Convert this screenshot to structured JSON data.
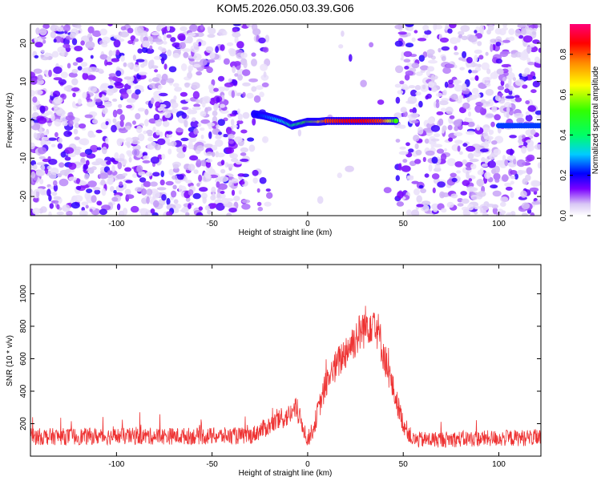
{
  "title": "KOM5.2026.050.03.39.G06",
  "chart_data": [
    {
      "type": "heatmap",
      "panel": "top",
      "xlabel": "Height of straight line (km)",
      "ylabel": "Frequency (Hz)",
      "xlim": [
        -145,
        122
      ],
      "ylim": [
        -25,
        25
      ],
      "xticks": [
        -100,
        -50,
        0,
        50,
        100
      ],
      "yticks": [
        -20,
        -10,
        0,
        10,
        20
      ],
      "colorbar": {
        "label": "Normalized spectral amplitude",
        "range": [
          0,
          0.95
        ],
        "ticks": [
          0.0,
          0.2,
          0.4,
          0.6,
          0.8
        ]
      },
      "noise_free_gap_x": [
        -20,
        47
      ],
      "signal_track": {
        "x": [
          -28,
          -22,
          -17,
          -12,
          -8,
          -4,
          0,
          3,
          6,
          10,
          20,
          30,
          40,
          47
        ],
        "freq": [
          1.5,
          1.0,
          0.3,
          -0.5,
          -1.5,
          -1.0,
          -0.5,
          -0.5,
          -0.5,
          -0.3,
          -0.3,
          -0.3,
          -0.3,
          -0.3
        ],
        "amplitude": [
          0.2,
          0.25,
          0.3,
          0.35,
          0.4,
          0.45,
          0.55,
          0.6,
          0.7,
          0.85,
          0.9,
          0.9,
          0.85,
          0.5
        ]
      },
      "secondary_track": {
        "x": [
          100,
          122
        ],
        "freq": [
          -1.5,
          -1.5
        ],
        "amplitude": 0.25
      }
    },
    {
      "type": "line",
      "panel": "bottom",
      "xlabel": "Height of straight line (km)",
      "ylabel": "SNR (10 * v/v)",
      "xlim": [
        -145,
        122
      ],
      "ylim": [
        0,
        1180
      ],
      "xticks": [
        -100,
        -50,
        0,
        50,
        100
      ],
      "yticks": [
        200,
        400,
        600,
        800,
        1000
      ],
      "series": [
        {
          "name": "SNR",
          "color": "#ee3333",
          "profile_x": [
            -145,
            -30,
            -10,
            -6,
            -2,
            0,
            3,
            5,
            10,
            20,
            30,
            35,
            40,
            45,
            50,
            55,
            122
          ],
          "profile_mean": [
            120,
            125,
            250,
            290,
            170,
            100,
            170,
            260,
            460,
            650,
            800,
            850,
            620,
            400,
            200,
            100,
            115
          ],
          "noise_amplitude": 95
        }
      ]
    }
  ]
}
